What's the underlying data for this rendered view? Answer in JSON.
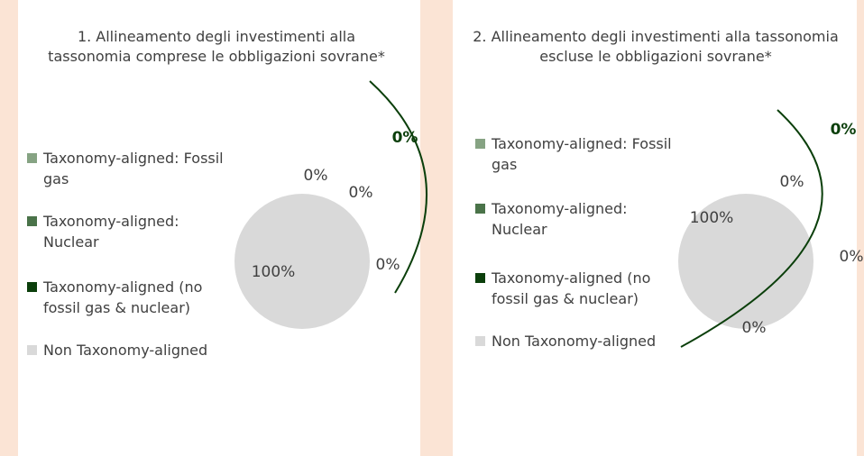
{
  "chart_data": [
    {
      "type": "pie",
      "title": "1. Allineamento degli investimenti alla tassonomia comprese le obbligazioni sovrane*",
      "categories": [
        "Taxonomy-aligned: Fossil gas",
        "Taxonomy-aligned: Nuclear",
        "Taxonomy-aligned (no fossil gas & nuclear)",
        "Non Taxonomy-aligned"
      ],
      "values": [
        0,
        0,
        0,
        100
      ],
      "value_labels": [
        "0%",
        "0%",
        "0%",
        "100%"
      ],
      "colors": [
        "#86a383",
        "#4a7349",
        "#0b3f0b",
        "#d9d9d9"
      ],
      "annotation": "0%"
    },
    {
      "type": "pie",
      "title": "2. Allineamento degli investimenti alla tassonomia escluse le obbligazioni sovrane*",
      "categories": [
        "Taxonomy-aligned: Fossil gas",
        "Taxonomy-aligned: Nuclear",
        "Taxonomy-aligned (no fossil gas & nuclear)",
        "Non Taxonomy-aligned"
      ],
      "values": [
        0,
        0,
        0,
        100
      ],
      "value_labels": [
        "0%",
        "0%",
        "0%",
        "100%"
      ],
      "colors": [
        "#86a383",
        "#4a7349",
        "#0b3f0b",
        "#d9d9d9"
      ],
      "annotation": "0%"
    }
  ]
}
